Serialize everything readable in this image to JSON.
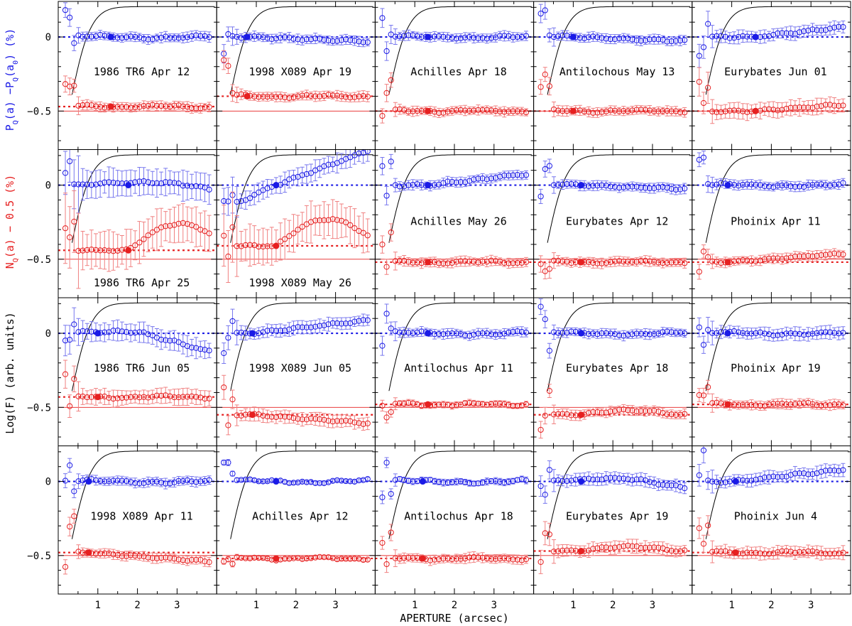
{
  "chart_data": {
    "type": "scatter",
    "layout": {
      "rows": 4,
      "cols": 5
    },
    "xlabel": "APERTURE (arcsec)",
    "ylabel_blue": "P_Q(a) −P_Q(a_0) (%)",
    "ylabel_red": "N_Q(a) − 0.5 (%)",
    "ylabel_black": "Log(F) (arb. units)",
    "ylabel_blue_parts": [
      "P",
      "Q",
      "(a)  −P",
      "Q",
      "(a",
      "0",
      ") (%)"
    ],
    "ylabel_red_parts": [
      "N",
      "Q",
      "(a)  − 0.5 (%)"
    ],
    "xlim": [
      0,
      4.0
    ],
    "ylim": [
      -0.76,
      0.24
    ],
    "xticks": [
      1,
      2,
      3
    ],
    "yticks": [
      0,
      -0.5
    ],
    "ytick_labels": [
      "0",
      "−0.5"
    ],
    "colors": {
      "blue": "#1a1ae6",
      "red": "#e62020",
      "red_light": "#f08080",
      "blue_light": "#7777ee",
      "black": "#000000"
    },
    "panels": [
      {
        "label": "1986 TR6 Apr 12",
        "ref_ap": 1.33,
        "red_ref": -0.47,
        "blue_shape": "flat",
        "red_shape": "flat",
        "blue_err": 0.03,
        "red_err": 0.03
      },
      {
        "label": "1998 X089 Apr 19",
        "ref_ap": 0.77,
        "red_ref": -0.4,
        "blue_shape": "down",
        "red_shape": "flat",
        "blue_err": 0.03,
        "red_err": 0.03
      },
      {
        "label": "Achilles Apr 18",
        "ref_ap": 1.33,
        "red_ref": -0.5,
        "blue_shape": "flat",
        "red_shape": "flat",
        "blue_err": 0.03,
        "red_err": 0.03
      },
      {
        "label": "Antilochous May 13",
        "ref_ap": 1.0,
        "red_ref": -0.5,
        "blue_shape": "down",
        "red_shape": "flat",
        "blue_err": 0.03,
        "red_err": 0.03
      },
      {
        "label": "Eurybates Jun 01",
        "ref_ap": 1.6,
        "red_ref": -0.5,
        "blue_shape": "rise",
        "red_shape": "up",
        "blue_err": 0.04,
        "red_err": 0.05
      },
      {
        "label": "1986 TR6 Apr 25",
        "ref_ap": 1.77,
        "red_ref": -0.44,
        "blue_shape": "hump",
        "red_shape": "bigup",
        "blue_err": 0.09,
        "red_err": 0.12
      },
      {
        "label": "1998 X089 May 26",
        "ref_ap": 1.5,
        "red_ref": -0.41,
        "blue_shape": "climb",
        "red_shape": "bigup",
        "blue_err": 0.06,
        "red_err": 0.12
      },
      {
        "label": "Achilles May 26",
        "ref_ap": 1.33,
        "red_ref": -0.52,
        "blue_shape": "rise",
        "red_shape": "flat",
        "blue_err": 0.03,
        "red_err": 0.03
      },
      {
        "label": "Eurybates Apr 12",
        "ref_ap": 1.2,
        "red_ref": -0.52,
        "blue_shape": "down",
        "red_shape": "flat",
        "blue_err": 0.03,
        "red_err": 0.03
      },
      {
        "label": "Phoinix Apr 11",
        "ref_ap": 0.9,
        "red_ref": -0.52,
        "blue_shape": "flat",
        "red_shape": "up",
        "blue_err": 0.03,
        "red_err": 0.03
      },
      {
        "label": "1986 TR6 Jun 05",
        "ref_ap": 1.0,
        "red_ref": -0.43,
        "blue_shape": "fall",
        "red_shape": "flat",
        "blue_err": 0.06,
        "red_err": 0.05
      },
      {
        "label": "1998 X089 Jun 05",
        "ref_ap": 0.9,
        "red_ref": -0.55,
        "blue_shape": "rise",
        "red_shape": "down",
        "blue_err": 0.04,
        "red_err": 0.04
      },
      {
        "label": "Antilochus Apr 11",
        "ref_ap": 1.33,
        "red_ref": -0.48,
        "blue_shape": "flat",
        "red_shape": "flat",
        "blue_err": 0.03,
        "red_err": 0.02
      },
      {
        "label": "Eurybates Apr 18",
        "ref_ap": 1.2,
        "red_ref": -0.55,
        "blue_shape": "flat",
        "red_shape": "hump",
        "blue_err": 0.03,
        "red_err": 0.03
      },
      {
        "label": "Phoinix Apr 19",
        "ref_ap": 0.9,
        "red_ref": -0.48,
        "blue_shape": "flat",
        "red_shape": "flat",
        "blue_err": 0.04,
        "red_err": 0.03
      },
      {
        "label": "1998 X089 Apr 11",
        "ref_ap": 0.77,
        "red_ref": -0.48,
        "blue_shape": "flat",
        "red_shape": "down",
        "blue_err": 0.03,
        "red_err": 0.03
      },
      {
        "label": "Achilles Apr 12",
        "ref_ap": 1.5,
        "red_ref": -0.52,
        "blue_shape": "flat",
        "red_shape": "flat",
        "blue_err": 0.01,
        "red_err": 0.01
      },
      {
        "label": "Antilochus Apr 18",
        "ref_ap": 1.2,
        "red_ref": -0.52,
        "blue_shape": "flat",
        "red_shape": "flat",
        "blue_err": 0.02,
        "red_err": 0.03
      },
      {
        "label": "Eurybates Apr 19",
        "ref_ap": 1.2,
        "red_ref": -0.47,
        "blue_shape": "hump",
        "red_shape": "hump",
        "blue_err": 0.04,
        "red_err": 0.04
      },
      {
        "label": "Phoinix Jun 4",
        "ref_ap": 1.1,
        "red_ref": -0.48,
        "blue_shape": "rise",
        "red_shape": "flat",
        "blue_err": 0.04,
        "red_err": 0.04
      }
    ]
  }
}
